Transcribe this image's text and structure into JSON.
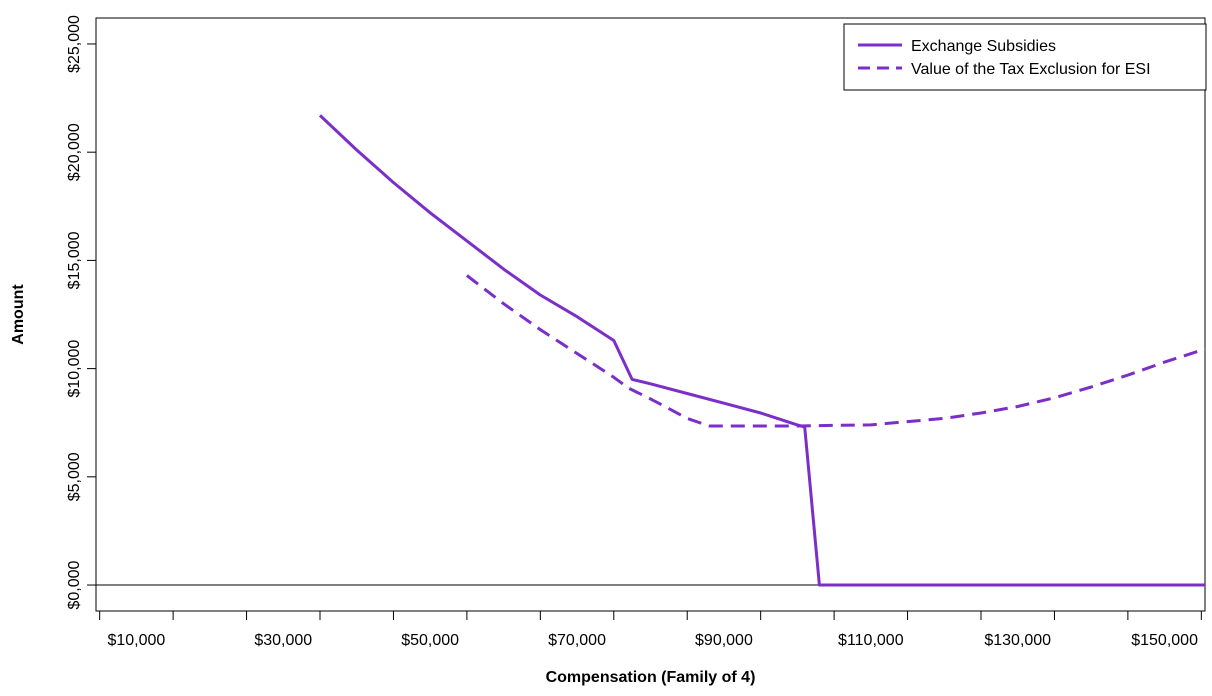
{
  "chart_data": {
    "type": "line",
    "title": "",
    "xlabel": "Compensation (Family of 4)",
    "ylabel": "Amount",
    "xlim": [
      4500,
      155500
    ],
    "ylim": [
      -1200,
      26200
    ],
    "x_ticks": [
      5000,
      15000,
      25000,
      35000,
      45000,
      55000,
      65000,
      75000,
      85000,
      95000,
      105000,
      115000,
      125000,
      135000,
      145000,
      155000
    ],
    "x_tick_labels": [
      {
        "value": 10000,
        "label": "$10,000"
      },
      {
        "value": 30000,
        "label": "$30,000"
      },
      {
        "value": 50000,
        "label": "$50,000"
      },
      {
        "value": 70000,
        "label": "$70,000"
      },
      {
        "value": 90000,
        "label": "$90,000"
      },
      {
        "value": 110000,
        "label": "$110,000"
      },
      {
        "value": 130000,
        "label": "$130,000"
      },
      {
        "value": 150000,
        "label": "$150,000"
      }
    ],
    "y_ticks": [
      {
        "value": 0,
        "label": "$0,000"
      },
      {
        "value": 5000,
        "label": "$5,000"
      },
      {
        "value": 10000,
        "label": "$10,000"
      },
      {
        "value": 15000,
        "label": "$15,000"
      },
      {
        "value": 20000,
        "label": "$20,000"
      },
      {
        "value": 25000,
        "label": "$25,000"
      }
    ],
    "hline": 0,
    "grid": false,
    "legend_position": "top-right",
    "series": [
      {
        "name": "Exchange Subsidies",
        "style": "solid",
        "color": "#7B2FC8",
        "x": [
          35000,
          40000,
          45000,
          50000,
          55000,
          60000,
          65000,
          70000,
          75000,
          77500,
          80000,
          85000,
          90000,
          95000,
          100000,
          101000,
          103000,
          110000,
          120000,
          130000,
          140000,
          150000,
          155500
        ],
        "y": [
          21700,
          20100,
          18600,
          17200,
          15900,
          14600,
          13400,
          12400,
          11300,
          9500,
          9300,
          8850,
          8400,
          7950,
          7400,
          7300,
          0,
          0,
          0,
          0,
          0,
          0,
          0
        ]
      },
      {
        "name": "Value of the Tax Exclusion for ESI",
        "style": "dashed",
        "color": "#7B2FC8",
        "x": [
          55000,
          60000,
          65000,
          70000,
          75000,
          77000,
          80000,
          85000,
          88000,
          95000,
          100000,
          105000,
          110000,
          115000,
          120000,
          125000,
          130000,
          135000,
          140000,
          145000,
          150000,
          155500
        ],
        "y": [
          14300,
          13000,
          11800,
          10700,
          9600,
          9100,
          8600,
          7700,
          7350,
          7350,
          7350,
          7380,
          7400,
          7550,
          7700,
          7950,
          8250,
          8650,
          9150,
          9700,
          10300,
          10900
        ]
      }
    ]
  }
}
